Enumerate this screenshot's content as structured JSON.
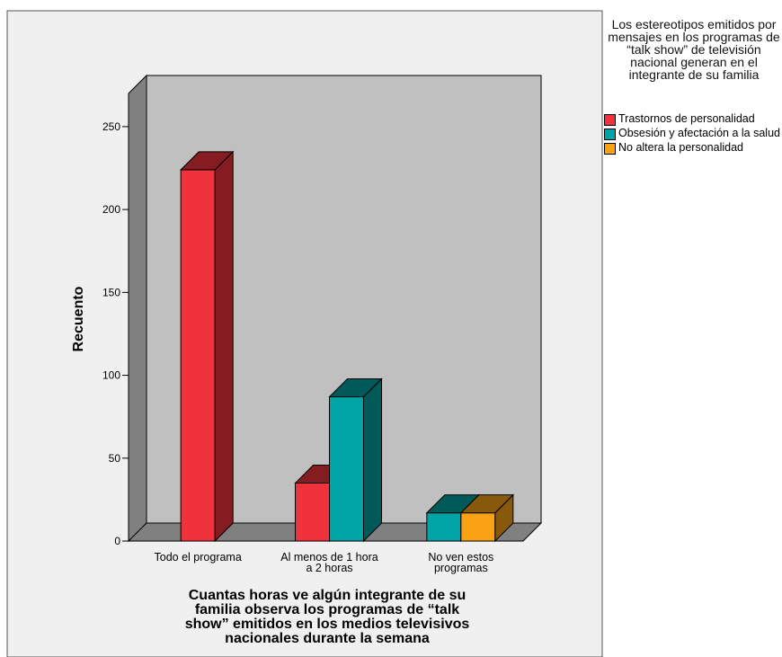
{
  "chart_data": {
    "type": "bar",
    "style": "3d-clustered",
    "categories": [
      "Todo el programa",
      "Al menos de 1 hora a 2 horas",
      "No ven estos programas"
    ],
    "series": [
      {
        "name": "Trastornos de personalidad",
        "color": "#f0323c",
        "values": [
          224,
          35,
          0
        ]
      },
      {
        "name": "Obsesión y afectación a la salud",
        "color": "#00a4a4",
        "values": [
          0,
          87,
          17
        ]
      },
      {
        "name": "No altera la personalidad",
        "color": "#f8a214",
        "values": [
          0,
          0,
          17
        ]
      }
    ],
    "xlabel": "Cuantas horas ve algún integrante de su familia observa los programas de “talk show” emitidos en los medios televisivos nacionales durante la semana",
    "ylabel": "Recuento",
    "ylim": [
      0,
      270
    ],
    "yticks": [
      0,
      50,
      100,
      150,
      200,
      250
    ],
    "grid": false,
    "legend_position": "right",
    "legend_title": "Los estereotipos emitidos por mensajes en los programas de “talk show” de televisión nacional generan en el integrante de su familia"
  }
}
